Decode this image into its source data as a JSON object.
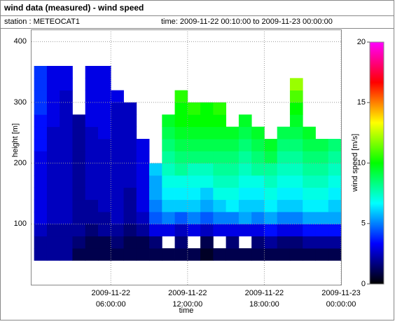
{
  "chart_data": {
    "type": "heatmap",
    "title": "wind data (measured) - wind speed",
    "station": "station : METEOCAT1",
    "time_range": "time: 2009-11-22 00:10:00 to 2009-11-23 00:00:00",
    "xlabel": "time",
    "ylabel": "height [m]",
    "colorbar_label": "wind speed [m/s]",
    "xlim": [
      -0.2,
      24
    ],
    "ylim": [
      0,
      420
    ],
    "xticks": [
      {
        "value": 6,
        "label": "2009-11-22 06:00:00"
      },
      {
        "value": 12,
        "label": "2009-11-22 12:00:00"
      },
      {
        "value": 18,
        "label": "2009-11-22 18:00:00"
      },
      {
        "value": 24,
        "label": "2009-11-23 00:00:00"
      }
    ],
    "yticks": [
      100,
      200,
      300,
      400
    ],
    "clim": [
      0,
      20
    ],
    "cticks": [
      0,
      5,
      10,
      15,
      20
    ],
    "colorscale": [
      "#000000",
      "#0000ff",
      "#00ffff",
      "#00ff00",
      "#ffff00",
      "#ff0000",
      "#ff00ff"
    ],
    "grid": true,
    "xbins": [
      0,
      1,
      2,
      3,
      4,
      5,
      6,
      7,
      8,
      9,
      10,
      11,
      12,
      13,
      14,
      15,
      16,
      17,
      18,
      19,
      20,
      21,
      22,
      23,
      24
    ],
    "ybins": [
      40,
      60,
      80,
      100,
      120,
      140,
      160,
      180,
      200,
      220,
      240,
      260,
      280,
      300,
      320,
      340,
      360
    ],
    "values": [
      [
        2,
        2,
        2,
        1,
        1,
        1,
        1,
        1,
        1,
        1,
        1,
        1,
        1,
        0.5,
        1,
        1,
        1,
        1,
        1,
        1,
        1,
        1,
        1,
        1
      ],
      [
        2,
        2,
        2,
        1.5,
        1,
        1,
        1.5,
        1,
        1,
        1.5,
        null,
        1.5,
        null,
        1,
        null,
        1.5,
        null,
        1.5,
        2,
        1.5,
        1.5,
        2,
        2,
        2
      ],
      [
        2.5,
        2,
        2,
        2,
        1.5,
        2,
        2,
        1.5,
        2,
        3,
        3,
        2.5,
        3,
        2.5,
        3,
        3,
        3,
        3,
        3.5,
        3,
        3,
        3.5,
        3.5,
        3.5
      ],
      [
        3,
        2.5,
        2.5,
        2,
        2,
        2,
        2.5,
        2,
        2.5,
        4.5,
        5,
        4.5,
        5,
        4.5,
        5,
        5,
        5.5,
        5,
        5.5,
        5,
        5,
        5.5,
        5.5,
        5.5
      ],
      [
        3,
        2.5,
        2.5,
        2,
        2,
        2.5,
        2.5,
        2,
        3,
        5,
        6,
        6,
        6,
        5.5,
        6,
        6.5,
        6,
        6,
        6.5,
        6,
        6,
        6.5,
        6.5,
        6
      ],
      [
        3,
        2.5,
        2.5,
        2,
        2.5,
        2.5,
        2.5,
        2,
        3,
        5.5,
        6.5,
        6.5,
        6.5,
        6,
        7,
        7,
        6.5,
        6.5,
        7,
        6.5,
        6.5,
        7,
        7,
        6.5
      ],
      [
        3,
        2.5,
        2.5,
        2,
        2.5,
        2.5,
        2.5,
        2.5,
        3,
        5.5,
        7,
        7,
        7,
        7,
        7.5,
        7.5,
        7,
        7,
        7.5,
        7,
        7,
        7.5,
        7.5,
        7
      ],
      [
        3,
        2.5,
        2.5,
        2,
        2.5,
        2.5,
        2.5,
        2.5,
        3,
        6,
        7.5,
        8,
        7.5,
        7.5,
        8,
        8,
        7.5,
        8,
        8,
        7.5,
        7.5,
        8,
        8,
        7.5
      ],
      [
        3,
        2.5,
        2.5,
        2,
        2.5,
        2.5,
        2.5,
        2.5,
        3,
        null,
        8,
        8.5,
        8.5,
        8.5,
        8.5,
        8.5,
        8,
        8.5,
        9,
        8,
        8,
        8.5,
        8.5,
        8
      ],
      [
        3.5,
        2.5,
        2.5,
        2,
        2.5,
        2.5,
        2.5,
        2.5,
        3,
        null,
        8.5,
        9,
        9,
        9,
        9,
        9,
        8.5,
        9,
        9.5,
        8.5,
        8.5,
        9,
        9,
        8.5
      ],
      [
        3.5,
        2.5,
        2.5,
        2,
        2.5,
        3,
        2.5,
        2.5,
        null,
        null,
        9,
        9.5,
        9.5,
        9.5,
        9.5,
        9.5,
        9,
        9.5,
        null,
        9,
        9,
        9.5,
        null,
        null
      ],
      [
        3.5,
        3,
        2.5,
        2,
        3,
        3,
        2.5,
        2.5,
        null,
        null,
        9.5,
        10,
        10,
        10,
        10,
        null,
        9.5,
        null,
        null,
        null,
        9.5,
        null,
        null,
        null
      ],
      [
        4,
        3,
        2.5,
        null,
        3,
        3,
        2.5,
        2.5,
        null,
        null,
        null,
        10,
        10.5,
        10,
        10.5,
        null,
        null,
        null,
        null,
        null,
        10,
        null,
        null,
        null
      ],
      [
        4,
        3,
        2.5,
        null,
        3,
        3,
        3,
        null,
        null,
        null,
        null,
        10.5,
        null,
        null,
        null,
        null,
        null,
        null,
        null,
        null,
        11,
        null,
        null,
        null
      ],
      [
        4,
        3,
        3,
        null,
        3,
        3,
        null,
        null,
        null,
        null,
        null,
        null,
        null,
        null,
        null,
        null,
        null,
        null,
        null,
        null,
        12,
        null,
        null,
        null
      ],
      [
        4,
        3,
        3,
        null,
        3,
        3,
        null,
        null,
        null,
        null,
        null,
        null,
        null,
        null,
        null,
        null,
        null,
        null,
        null,
        null,
        null,
        null,
        null,
        null
      ]
    ]
  }
}
